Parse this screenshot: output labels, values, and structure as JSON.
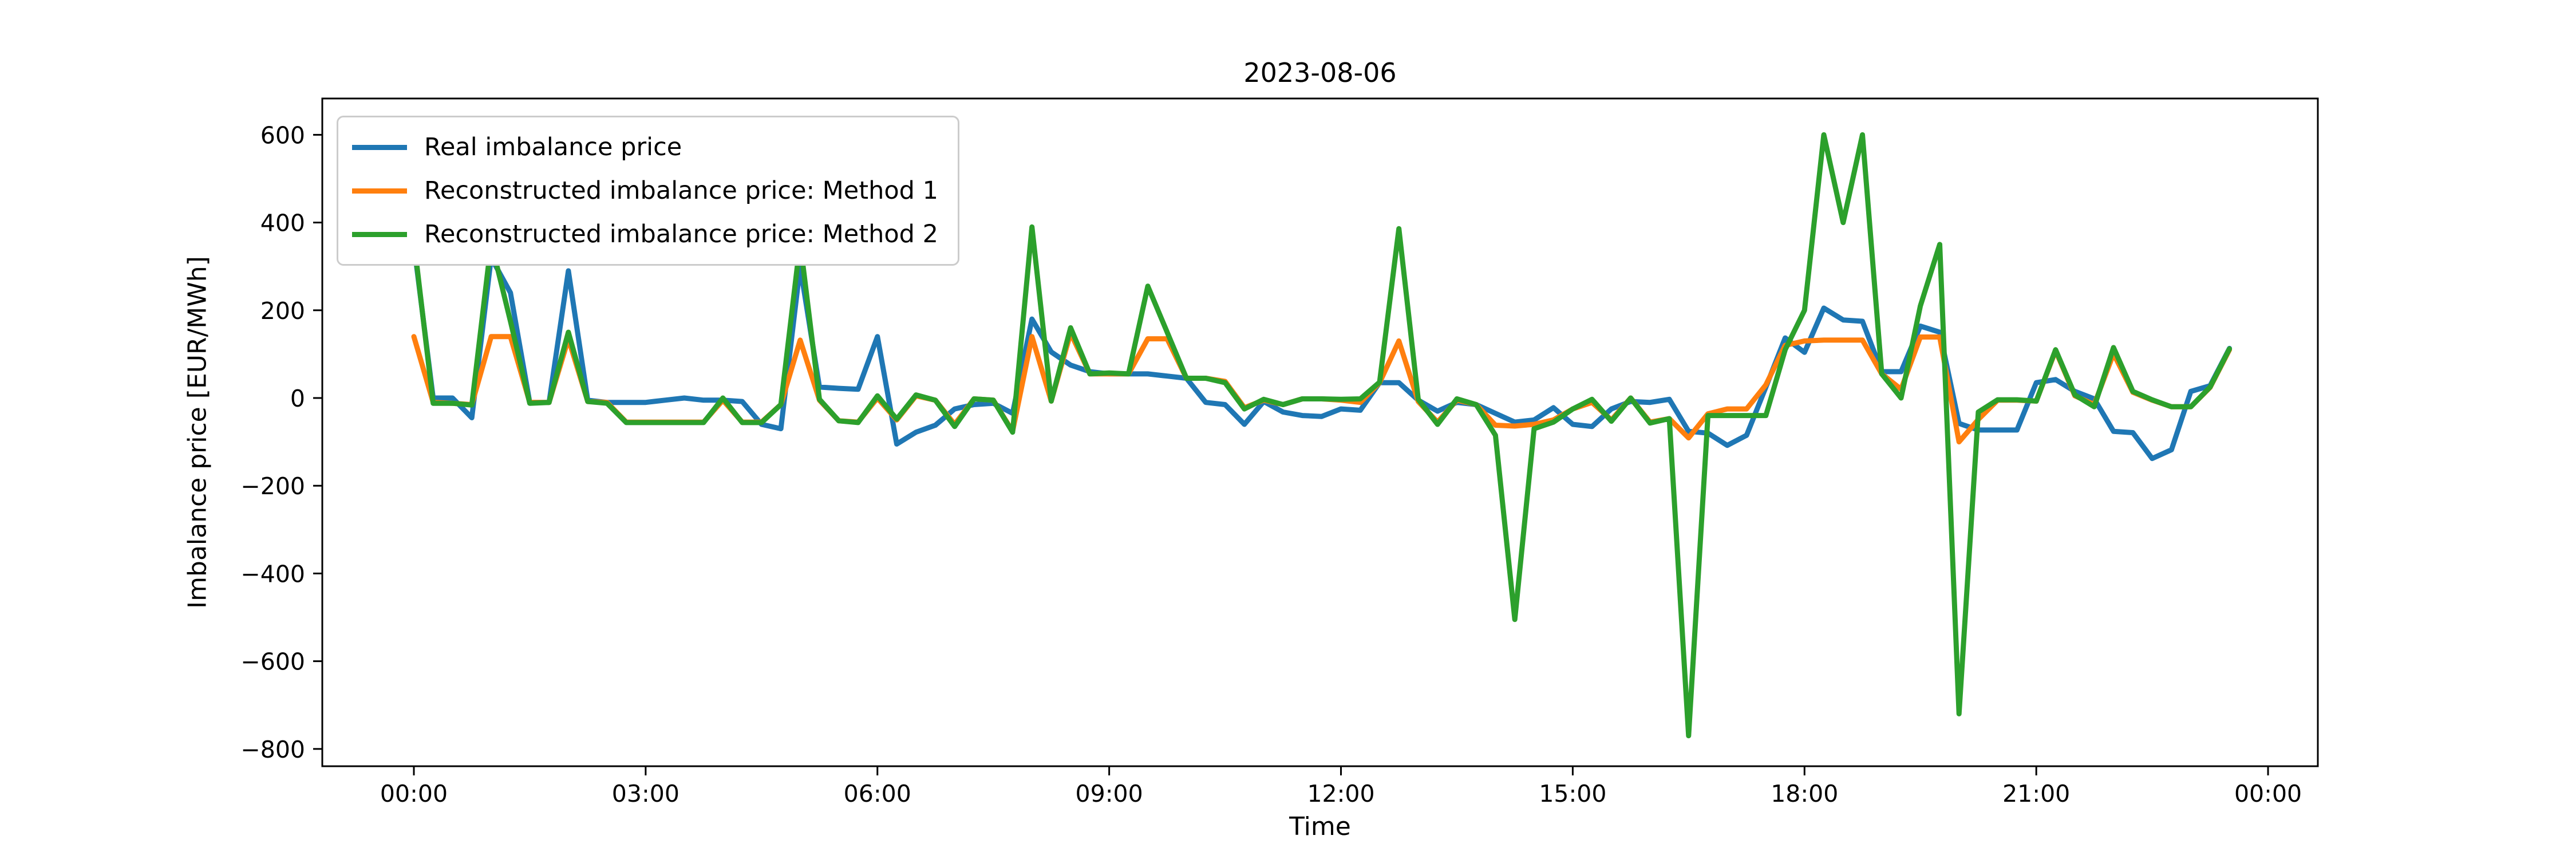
{
  "figure": {
    "title": "2023-08-06",
    "x_axis_label": "Time",
    "y_axis_label": "Imbalance price [EUR/MWh]"
  },
  "chart_data": {
    "type": "line",
    "title": "2023-08-06",
    "xlabel": "Time",
    "ylabel": "Imbalance price [EUR/MWh]",
    "x_start": "00:00",
    "x_step_minutes": 15,
    "n_points": 95,
    "x_last": "23:30",
    "xlim_hours": [
      -1.19,
      24.65
    ],
    "ylim": [
      -840,
      683
    ],
    "grid": false,
    "legend_position": "upper-left",
    "x_ticks": [
      {
        "label": "00:00",
        "hour": 0
      },
      {
        "label": "03:00",
        "hour": 3
      },
      {
        "label": "06:00",
        "hour": 6
      },
      {
        "label": "09:00",
        "hour": 9
      },
      {
        "label": "12:00",
        "hour": 12
      },
      {
        "label": "15:00",
        "hour": 15
      },
      {
        "label": "18:00",
        "hour": 18
      },
      {
        "label": "21:00",
        "hour": 21
      },
      {
        "label": "00:00",
        "hour": 24
      }
    ],
    "y_ticks": {
      "values": [
        600,
        400,
        200,
        0,
        -200,
        -400,
        -600,
        -800
      ],
      "labels": [
        "600",
        "400",
        "200",
        "0",
        "−200",
        "−400",
        "−600",
        "−800"
      ]
    },
    "series": [
      {
        "name": "Real imbalance price",
        "color": "#1f77b4",
        "values": [
          350,
          0,
          0,
          -45,
          320,
          240,
          -10,
          -10,
          290,
          -5,
          -10,
          -10,
          -10,
          -5,
          0,
          -5,
          -5,
          -8,
          -60,
          -70,
          300,
          25,
          22,
          20,
          140,
          -105,
          -78,
          -62,
          -25,
          -15,
          -12,
          -35,
          180,
          105,
          75,
          60,
          55,
          55,
          55,
          50,
          45,
          -10,
          -15,
          -60,
          -8,
          -32,
          -40,
          -42,
          -25,
          -28,
          35,
          35,
          -5,
          -30,
          -10,
          -15,
          -35,
          -55,
          -50,
          -22,
          -60,
          -65,
          -25,
          -8,
          -10,
          -3,
          -76,
          -80,
          -108,
          -85,
          25,
          137,
          104,
          205,
          178,
          175,
          60,
          60,
          164,
          150,
          -58,
          -73,
          -73,
          -73,
          35,
          42,
          15,
          -2,
          -76,
          -79,
          -138,
          -118,
          15,
          28,
          113
        ]
      },
      {
        "name": "Reconstructed imbalance price: Method 1",
        "color": "#ff7f0e",
        "values": [
          140,
          -10,
          -12,
          -15,
          140,
          140,
          -10,
          -10,
          135,
          -8,
          -10,
          -55,
          -55,
          -55,
          -55,
          -55,
          -5,
          -55,
          -55,
          -15,
          132,
          -5,
          -52,
          -55,
          0,
          -50,
          5,
          -5,
          -60,
          -2,
          -5,
          -76,
          140,
          -7,
          148,
          55,
          55,
          55,
          135,
          135,
          45,
          45,
          38,
          -22,
          -5,
          -15,
          -2,
          -2,
          -5,
          -10,
          35,
          130,
          -8,
          -55,
          -5,
          -15,
          -62,
          -64,
          -60,
          -50,
          -25,
          -10,
          -50,
          0,
          -55,
          -47,
          -91,
          -36,
          -25,
          -25,
          30,
          120,
          130,
          132,
          132,
          132,
          55,
          20,
          139,
          139,
          -100,
          -49,
          -5,
          -5,
          -7,
          108,
          5,
          -15,
          101,
          13,
          -5,
          -20,
          -20,
          24,
          110
        ]
      },
      {
        "name": "Reconstructed imbalance price: Method 2",
        "color": "#2ca02c",
        "values": [
          360,
          -12,
          -12,
          -16,
          355,
          175,
          -12,
          -10,
          150,
          -8,
          -12,
          -56,
          -56,
          -56,
          -56,
          -56,
          0,
          -56,
          -56,
          -15,
          355,
          -3,
          -52,
          -56,
          5,
          -48,
          7,
          -5,
          -65,
          -2,
          -5,
          -78,
          390,
          -7,
          160,
          55,
          57,
          55,
          255,
          150,
          45,
          45,
          35,
          -25,
          -3,
          -15,
          -2,
          -2,
          -3,
          -2,
          36,
          386,
          -3,
          -60,
          -2,
          -15,
          -85,
          -505,
          -70,
          -55,
          -25,
          -3,
          -53,
          0,
          -57,
          -47,
          -770,
          -40,
          -40,
          -40,
          -40,
          110,
          200,
          600,
          400,
          600,
          55,
          0,
          210,
          350,
          -720,
          -32,
          -4,
          -4,
          -7,
          110,
          7,
          -20,
          115,
          15,
          -4,
          -20,
          -20,
          25,
          112
        ]
      }
    ]
  }
}
